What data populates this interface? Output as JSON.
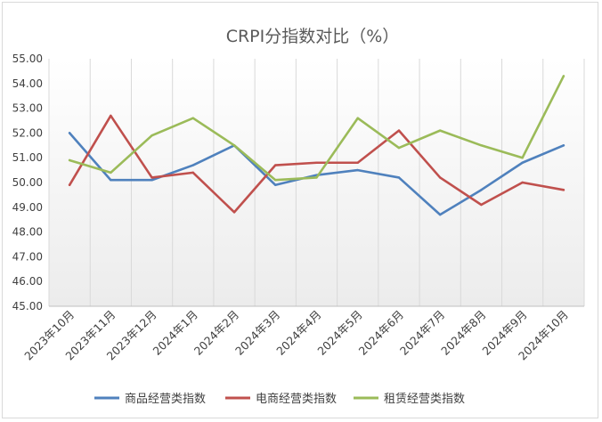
{
  "chart_data": {
    "type": "line",
    "title": "CRPI分指数对比（%）",
    "categories": [
      "2023年10月",
      "2023年11月",
      "2023年12月",
      "2024年1月",
      "2024年2月",
      "2024年3月",
      "2024年4月",
      "2024年5月",
      "2024年6月",
      "2024年7月",
      "2024年8月",
      "2024年9月",
      "2024年10月"
    ],
    "y_ticks": [
      "45.00",
      "46.00",
      "47.00",
      "48.00",
      "49.00",
      "50.00",
      "51.00",
      "52.00",
      "53.00",
      "54.00",
      "55.00"
    ],
    "ylim": [
      45,
      55
    ],
    "grid": true,
    "legend_position": "bottom",
    "series": [
      {
        "name": "商品经营类指数",
        "color": "#4f81bd",
        "values": [
          52.0,
          50.1,
          50.1,
          50.7,
          51.5,
          49.9,
          50.3,
          50.5,
          50.2,
          48.7,
          49.7,
          50.8,
          51.5
        ]
      },
      {
        "name": "电商经营类指数",
        "color": "#c0504d",
        "values": [
          49.9,
          52.7,
          50.2,
          50.4,
          48.8,
          50.7,
          50.8,
          50.8,
          52.1,
          50.2,
          49.1,
          50.0,
          49.7
        ]
      },
      {
        "name": "租赁经营类指数",
        "color": "#9bbb59",
        "values": [
          50.9,
          50.4,
          51.9,
          52.6,
          51.5,
          50.1,
          50.2,
          52.6,
          51.4,
          52.1,
          51.5,
          51.0,
          54.3
        ]
      }
    ]
  }
}
